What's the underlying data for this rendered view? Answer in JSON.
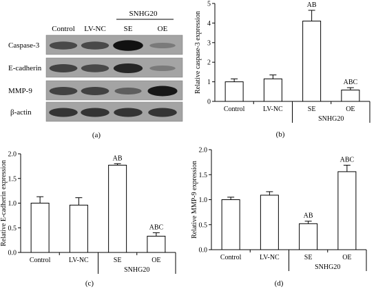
{
  "panels": [
    {
      "id": "a",
      "caption": "(a)"
    },
    {
      "id": "b",
      "caption": "(b)"
    },
    {
      "id": "c",
      "caption": "(c)"
    },
    {
      "id": "d",
      "caption": "(d)"
    }
  ],
  "western_blot": {
    "lane_labels": [
      "Control",
      "LV-NC",
      "SE",
      "OE"
    ],
    "group_label": "SNHG20",
    "rows": [
      {
        "protein": "Caspase-3",
        "intensity": [
          0.55,
          0.55,
          0.95,
          0.2
        ]
      },
      {
        "protein": "E-cadherin",
        "intensity": [
          0.6,
          0.55,
          0.8,
          0.2
        ]
      },
      {
        "protein": "MMP-9",
        "intensity": [
          0.6,
          0.6,
          0.4,
          0.9
        ]
      },
      {
        "protein": "β-actin",
        "intensity": [
          0.7,
          0.7,
          0.7,
          0.7
        ]
      }
    ]
  },
  "chart_data": [
    {
      "panel": "b",
      "type": "bar",
      "categories": [
        "Control",
        "LV-NC",
        "SE",
        "OE"
      ],
      "group_label": "SNHG20",
      "values": [
        1.0,
        1.15,
        4.1,
        0.58
      ],
      "errors": [
        0.15,
        0.2,
        0.55,
        0.12
      ],
      "annotations": [
        "",
        "",
        "AB",
        "ABC"
      ],
      "ylabel": "Relative caspase-3 expression",
      "ylim": [
        0,
        5
      ],
      "yticks": [
        "0",
        "1",
        "2",
        "3",
        "4",
        "5"
      ],
      "grid": false
    },
    {
      "panel": "c",
      "type": "bar",
      "categories": [
        "Control",
        "LV-NC",
        "SE",
        "OE"
      ],
      "group_label": "SNHG20",
      "values": [
        1.0,
        0.96,
        1.77,
        0.33
      ],
      "errors": [
        0.13,
        0.15,
        0.03,
        0.07
      ],
      "annotations": [
        "",
        "",
        "AB",
        "ABC"
      ],
      "ylabel": "Relative E-cadherin expression",
      "ylim": [
        0,
        2.0
      ],
      "yticks": [
        "0.0",
        "0.5",
        "1.0",
        "1.5",
        "2.0"
      ],
      "grid": false
    },
    {
      "panel": "d",
      "type": "bar",
      "categories": [
        "Control",
        "LV-NC",
        "SE",
        "OE"
      ],
      "group_label": "SNHG20",
      "values": [
        1.0,
        1.09,
        0.52,
        1.56
      ],
      "errors": [
        0.05,
        0.07,
        0.05,
        0.13
      ],
      "annotations": [
        "",
        "",
        "AB",
        "ABC"
      ],
      "ylabel": "Relative MMP-9 expression",
      "ylim": [
        0,
        2.0
      ],
      "yticks": [
        "0.0",
        "0.5",
        "1.0",
        "1.5",
        "2.0"
      ],
      "grid": false
    }
  ]
}
